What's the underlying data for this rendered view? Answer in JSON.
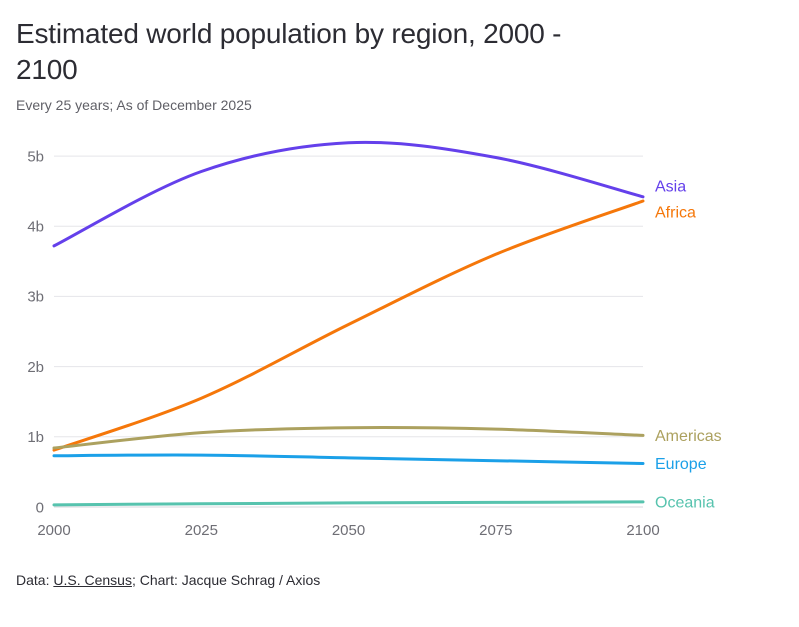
{
  "chart_data": {
    "type": "line",
    "title": "Estimated world population by region, 2000 - 2100",
    "subtitle": "Every 25 years; As of December 2025",
    "x": [
      2000,
      2025,
      2050,
      2075,
      2100
    ],
    "x_tick_labels": [
      "2000",
      "2025",
      "2050",
      "2075",
      "2100"
    ],
    "yticks": [
      0,
      1,
      2,
      3,
      4,
      5
    ],
    "y_tick_labels": [
      "0",
      "1b",
      "2b",
      "3b",
      "4b",
      "5b"
    ],
    "ylim": [
      0,
      5.3
    ],
    "y_unit": "billions of people",
    "xlabel": "",
    "ylabel": "",
    "grid": "horizontal",
    "legend_position": "line-end-labels-right",
    "series": [
      {
        "name": "Asia",
        "color": "#6440eb",
        "values": [
          3.72,
          4.78,
          5.19,
          4.98,
          4.42
        ]
      },
      {
        "name": "Africa",
        "color": "#f5770a",
        "values": [
          0.81,
          1.55,
          2.6,
          3.6,
          4.36
        ]
      },
      {
        "name": "Americas",
        "color": "#aca15f",
        "values": [
          0.84,
          1.06,
          1.13,
          1.11,
          1.02
        ]
      },
      {
        "name": "Europe",
        "color": "#1ba0e8",
        "values": [
          0.73,
          0.74,
          0.7,
          0.66,
          0.62
        ]
      },
      {
        "name": "Oceania",
        "color": "#57c3ae",
        "values": [
          0.031,
          0.046,
          0.058,
          0.066,
          0.072
        ]
      }
    ]
  },
  "footer": {
    "prefix": "Data: ",
    "link": "U.S. Census",
    "suffix": "; Chart: Jacque Schrag / Axios"
  }
}
